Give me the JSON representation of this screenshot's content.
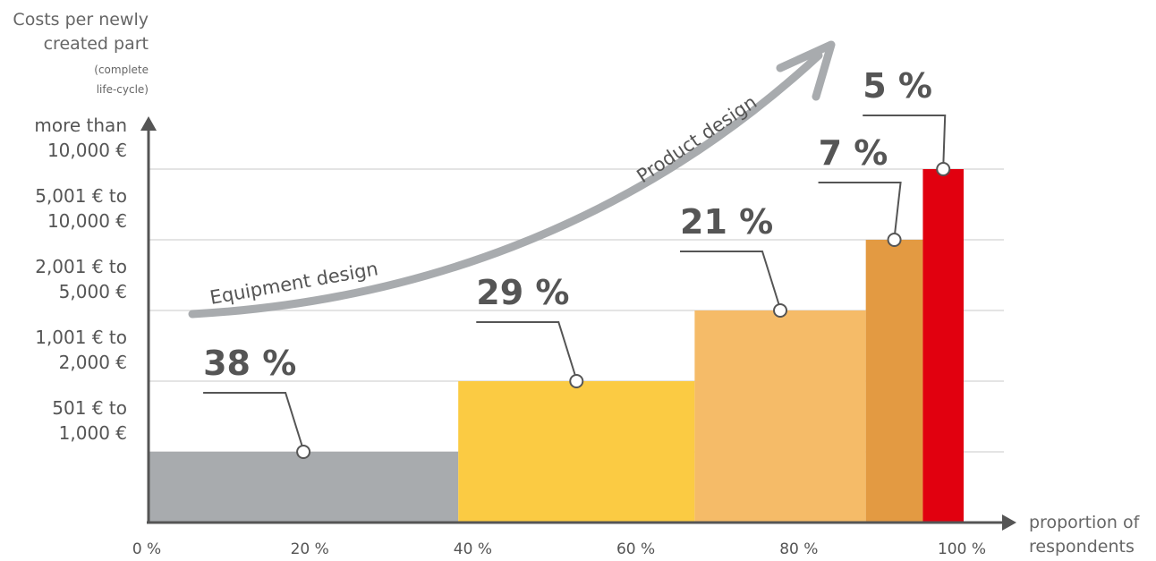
{
  "chart_data": {
    "type": "bar",
    "y_title": [
      "Costs per newly",
      "created part"
    ],
    "y_subtitle": [
      "(complete",
      "life-cycle)"
    ],
    "x_title": [
      "proportion of",
      "respondents"
    ],
    "xlim": [
      0,
      100
    ],
    "x_ticks": [
      "0 %",
      "20 %",
      "40 %",
      "60 %",
      "80 %",
      "100 %"
    ],
    "categories": [
      [
        "501 € to",
        "1,000 €"
      ],
      [
        "1,001 € to",
        "2,000 €"
      ],
      [
        "2,001 € to",
        "5,000 €"
      ],
      [
        "5,001 € to",
        "10,000 €"
      ],
      [
        "more than",
        "10,000 €"
      ]
    ],
    "series": [
      {
        "label": "38 %",
        "share": 38,
        "level": 1,
        "color": "#a8abae"
      },
      {
        "label": "29 %",
        "share": 29,
        "level": 2,
        "color": "#fbcb43"
      },
      {
        "label": "21 %",
        "share": 21,
        "level": 3,
        "color": "#f5bb68"
      },
      {
        "label": "7 %",
        "share": 7,
        "level": 4,
        "color": "#e39a42"
      },
      {
        "label": "5 %",
        "share": 5,
        "level": 5,
        "color": "#e1000f"
      }
    ],
    "annotations": [
      "Equipment design",
      "Product design"
    ],
    "grid": true
  }
}
